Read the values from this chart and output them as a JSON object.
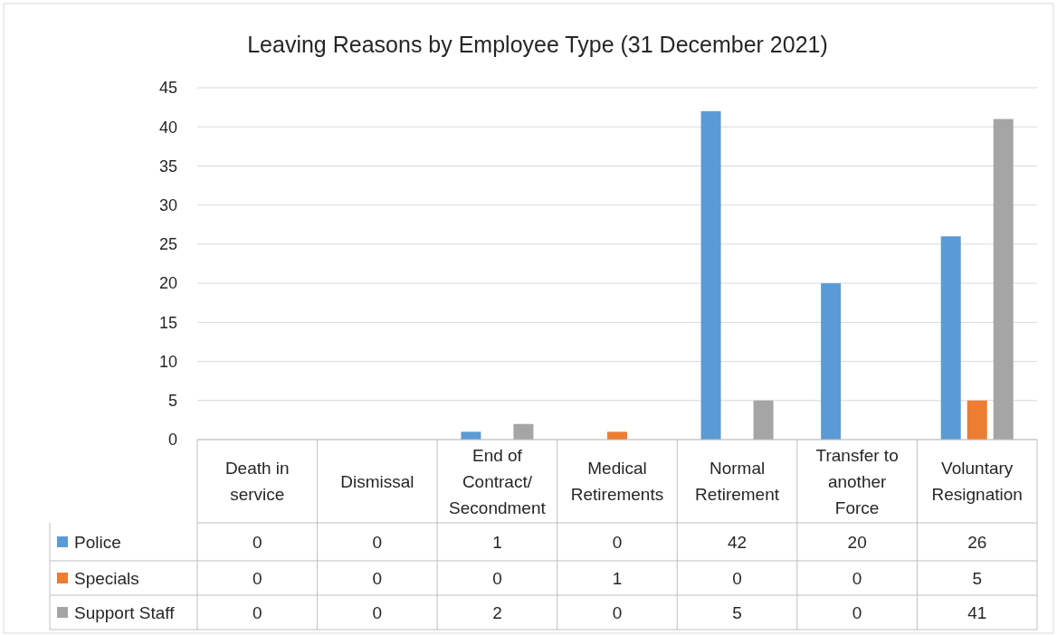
{
  "chart_data": {
    "type": "bar",
    "title": "Leaving Reasons by Employee Type (31 December 2021)",
    "categories": [
      "Death in service",
      "Dismissal",
      "End of Contract/Secondment",
      "Medical Retirements",
      "Normal Retirement",
      "Transfer to another Force",
      "Voluntary Resignation"
    ],
    "series": [
      {
        "name": "Police",
        "color": "#5b9bd5",
        "values": [
          0,
          0,
          1,
          0,
          42,
          20,
          26
        ]
      },
      {
        "name": "Specials",
        "color": "#ed7d31",
        "values": [
          0,
          0,
          0,
          1,
          0,
          0,
          5
        ]
      },
      {
        "name": "Support Staff",
        "color": "#a5a5a5",
        "values": [
          0,
          0,
          2,
          0,
          5,
          0,
          41
        ]
      }
    ],
    "ylim": [
      0,
      45
    ],
    "yticks": [
      0,
      5,
      10,
      15,
      20,
      25,
      30,
      35,
      40,
      45
    ],
    "grid": "y",
    "legend": "bottom",
    "data_labels": true
  }
}
